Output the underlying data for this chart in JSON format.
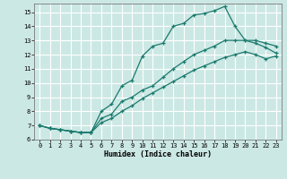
{
  "bg_color": "#cce8e4",
  "grid_color": "#ffffff",
  "line_color": "#1a7a6e",
  "xlabel": "Humidex (Indice chaleur)",
  "xlim": [
    -0.5,
    23.5
  ],
  "ylim": [
    6,
    15.6
  ],
  "xticks": [
    0,
    1,
    2,
    3,
    4,
    5,
    6,
    7,
    8,
    9,
    10,
    11,
    12,
    13,
    14,
    15,
    16,
    17,
    18,
    19,
    20,
    21,
    22,
    23
  ],
  "yticks": [
    6,
    7,
    8,
    9,
    10,
    11,
    12,
    13,
    14,
    15
  ],
  "line1_x": [
    0,
    1,
    2,
    3,
    4,
    5,
    6,
    7,
    8,
    9,
    10,
    11,
    12,
    13,
    14,
    15,
    16,
    17,
    18,
    19,
    20,
    21,
    22,
    23
  ],
  "line1_y": [
    7.0,
    6.8,
    6.7,
    6.6,
    6.5,
    6.5,
    8.0,
    8.5,
    9.8,
    10.2,
    11.9,
    12.6,
    12.8,
    14.0,
    14.2,
    14.8,
    14.9,
    15.1,
    15.4,
    14.0,
    13.0,
    13.0,
    12.8,
    12.6
  ],
  "line2_x": [
    0,
    1,
    2,
    3,
    4,
    5,
    6,
    7,
    8,
    9,
    10,
    11,
    12,
    13,
    14,
    15,
    16,
    17,
    18,
    19,
    20,
    21,
    22,
    23
  ],
  "line2_y": [
    7.0,
    6.8,
    6.7,
    6.6,
    6.5,
    6.5,
    7.5,
    7.8,
    8.7,
    9.0,
    9.5,
    9.8,
    10.4,
    11.0,
    11.5,
    12.0,
    12.3,
    12.6,
    13.0,
    13.0,
    13.0,
    12.8,
    12.5,
    12.1
  ],
  "line3_x": [
    0,
    1,
    2,
    3,
    4,
    5,
    6,
    7,
    8,
    9,
    10,
    11,
    12,
    13,
    14,
    15,
    16,
    17,
    18,
    19,
    20,
    21,
    22,
    23
  ],
  "line3_y": [
    7.0,
    6.8,
    6.7,
    6.6,
    6.5,
    6.5,
    7.2,
    7.5,
    8.0,
    8.4,
    8.9,
    9.3,
    9.7,
    10.1,
    10.5,
    10.9,
    11.2,
    11.5,
    11.8,
    12.0,
    12.2,
    12.0,
    11.7,
    11.9
  ]
}
